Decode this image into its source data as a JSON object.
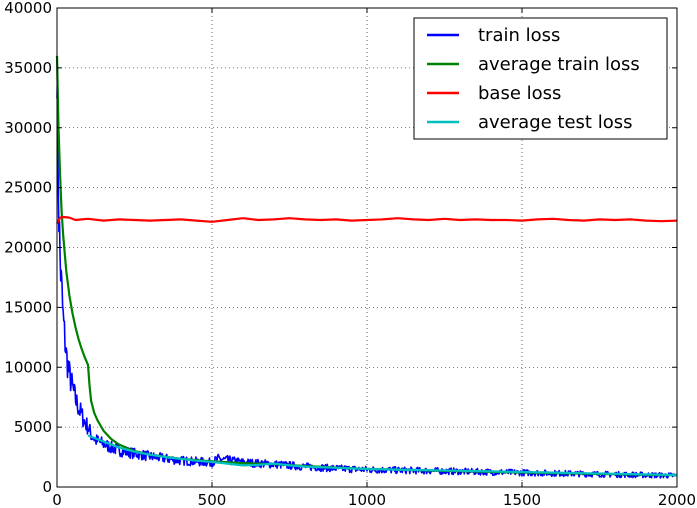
{
  "chart_data": {
    "type": "line",
    "title": "",
    "xlabel": "",
    "ylabel": "",
    "xlim": [
      0,
      2000
    ],
    "ylim": [
      0,
      40000
    ],
    "x_ticks": [
      0,
      500,
      1000,
      1500,
      2000
    ],
    "y_ticks": [
      0,
      5000,
      10000,
      15000,
      20000,
      25000,
      30000,
      35000,
      40000
    ],
    "grid": true,
    "legend_position": "top-right",
    "series": [
      {
        "name": "train loss",
        "color": "#0000ff",
        "style": "noisy",
        "x": [
          0,
          5,
          10,
          20,
          30,
          40,
          50,
          60,
          70,
          80,
          90,
          100,
          110,
          125,
          150,
          175,
          200,
          250,
          300,
          400,
          500,
          520,
          600,
          700,
          800,
          900,
          1000,
          1200,
          1400,
          1600,
          1800,
          2000
        ],
        "y": [
          37000,
          24000,
          19000,
          14000,
          11000,
          9400,
          8300,
          7300,
          6600,
          6000,
          5400,
          5000,
          4400,
          3900,
          3600,
          3300,
          3050,
          2800,
          2550,
          2200,
          2050,
          2350,
          2050,
          1900,
          1700,
          1550,
          1450,
          1350,
          1250,
          1150,
          1050,
          950
        ]
      },
      {
        "name": "average train loss",
        "color": "#008000",
        "style": "smooth",
        "x": [
          0,
          5,
          10,
          15,
          20,
          30,
          40,
          50,
          60,
          70,
          80,
          90,
          100,
          105,
          110,
          120,
          130,
          150,
          175,
          200,
          250,
          300,
          400,
          500,
          600,
          700,
          800,
          900,
          1000,
          1200,
          1400,
          1600,
          1800,
          2000
        ],
        "y": [
          36000,
          30000,
          26000,
          23000,
          21000,
          18000,
          16000,
          14500,
          13300,
          12300,
          11500,
          10800,
          10200,
          8500,
          7200,
          6200,
          5600,
          4700,
          4000,
          3550,
          3000,
          2700,
          2350,
          2150,
          2000,
          1900,
          1750,
          1620,
          1520,
          1380,
          1260,
          1160,
          1070,
          980
        ]
      },
      {
        "name": "base loss",
        "color": "#ff0000",
        "style": "smooth",
        "x": [
          0,
          10,
          20,
          40,
          60,
          80,
          100,
          150,
          200,
          250,
          300,
          350,
          400,
          450,
          500,
          550,
          600,
          650,
          700,
          750,
          800,
          850,
          900,
          950,
          1000,
          1050,
          1100,
          1150,
          1200,
          1250,
          1300,
          1350,
          1400,
          1450,
          1500,
          1550,
          1600,
          1650,
          1700,
          1750,
          1800,
          1850,
          1900,
          1950,
          2000
        ],
        "y": [
          22000,
          22500,
          22550,
          22500,
          22300,
          22350,
          22400,
          22250,
          22350,
          22300,
          22250,
          22300,
          22350,
          22250,
          22150,
          22300,
          22450,
          22300,
          22350,
          22450,
          22350,
          22300,
          22350,
          22250,
          22300,
          22350,
          22450,
          22350,
          22300,
          22400,
          22300,
          22350,
          22300,
          22300,
          22250,
          22350,
          22400,
          22300,
          22250,
          22350,
          22300,
          22350,
          22250,
          22200,
          22250
        ]
      },
      {
        "name": "average test loss",
        "color": "#00bfbf",
        "style": "smooth",
        "x": [
          100,
          130,
          160,
          200,
          250,
          300,
          350,
          400,
          450,
          500,
          550,
          600,
          650,
          700,
          750,
          800,
          900,
          1000,
          1100,
          1200,
          1300,
          1400,
          1500,
          1600,
          1700,
          1800,
          1900,
          2000
        ],
        "y": [
          4300,
          4000,
          3700,
          3300,
          2950,
          2700,
          2500,
          2350,
          2200,
          2100,
          1950,
          1800,
          1850,
          1950,
          1800,
          1700,
          1600,
          1500,
          1450,
          1400,
          1350,
          1300,
          1250,
          1200,
          1150,
          1100,
          1050,
          1000
        ]
      }
    ]
  }
}
